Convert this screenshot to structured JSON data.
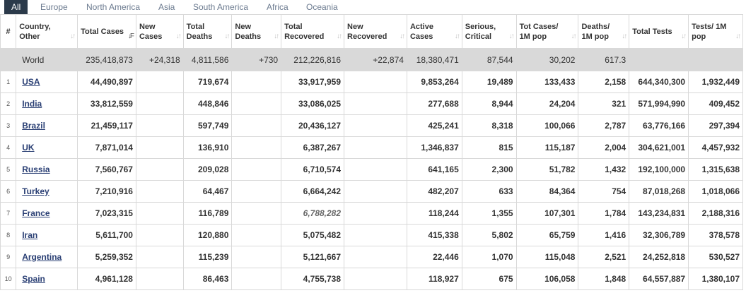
{
  "tabs": [
    "All",
    "Europe",
    "North America",
    "Asia",
    "South America",
    "Africa",
    "Oceania"
  ],
  "active_tab": "All",
  "columns": [
    {
      "key": "hash",
      "label": "#"
    },
    {
      "key": "country",
      "label": "Country, Other"
    },
    {
      "key": "total_cases",
      "label": "Total Cases"
    },
    {
      "key": "new_cases",
      "label": "New Cases"
    },
    {
      "key": "total_deaths",
      "label": "Total Deaths"
    },
    {
      "key": "new_deaths",
      "label": "New Deaths"
    },
    {
      "key": "total_recovered",
      "label": "Total Recovered"
    },
    {
      "key": "new_recovered",
      "label": "New Recovered"
    },
    {
      "key": "active_cases",
      "label": "Active Cases"
    },
    {
      "key": "serious",
      "label": "Serious, Critical"
    },
    {
      "key": "cases_1m",
      "label": "Tot Cases/ 1M pop"
    },
    {
      "key": "deaths_1m",
      "label": "Deaths/ 1M pop"
    },
    {
      "key": "total_tests",
      "label": "Total Tests"
    },
    {
      "key": "tests_1m",
      "label": "Tests/ 1M pop"
    }
  ],
  "world": {
    "country": "World",
    "total_cases": "235,418,873",
    "new_cases": "+24,318",
    "total_deaths": "4,811,586",
    "new_deaths": "+730",
    "total_recovered": "212,226,816",
    "new_recovered": "+22,874",
    "active_cases": "18,380,471",
    "serious": "87,544",
    "cases_1m": "30,202",
    "deaths_1m": "617.3",
    "total_tests": "",
    "tests_1m": ""
  },
  "rows": [
    {
      "idx": "1",
      "country": "USA",
      "total_cases": "44,490,897",
      "new_cases": "",
      "total_deaths": "719,674",
      "new_deaths": "",
      "total_recovered": "33,917,959",
      "new_recovered": "",
      "active_cases": "9,853,264",
      "serious": "19,489",
      "cases_1m": "133,433",
      "deaths_1m": "2,158",
      "total_tests": "644,340,300",
      "tests_1m": "1,932,449"
    },
    {
      "idx": "2",
      "country": "India",
      "total_cases": "33,812,559",
      "new_cases": "",
      "total_deaths": "448,846",
      "new_deaths": "",
      "total_recovered": "33,086,025",
      "new_recovered": "",
      "active_cases": "277,688",
      "serious": "8,944",
      "cases_1m": "24,204",
      "deaths_1m": "321",
      "total_tests": "571,994,990",
      "tests_1m": "409,452"
    },
    {
      "idx": "3",
      "country": "Brazil",
      "total_cases": "21,459,117",
      "new_cases": "",
      "total_deaths": "597,749",
      "new_deaths": "",
      "total_recovered": "20,436,127",
      "new_recovered": "",
      "active_cases": "425,241",
      "serious": "8,318",
      "cases_1m": "100,066",
      "deaths_1m": "2,787",
      "total_tests": "63,776,166",
      "tests_1m": "297,394"
    },
    {
      "idx": "4",
      "country": "UK",
      "total_cases": "7,871,014",
      "new_cases": "",
      "total_deaths": "136,910",
      "new_deaths": "",
      "total_recovered": "6,387,267",
      "new_recovered": "",
      "active_cases": "1,346,837",
      "serious": "815",
      "cases_1m": "115,187",
      "deaths_1m": "2,004",
      "total_tests": "304,621,001",
      "tests_1m": "4,457,932"
    },
    {
      "idx": "5",
      "country": "Russia",
      "total_cases": "7,560,767",
      "new_cases": "",
      "total_deaths": "209,028",
      "new_deaths": "",
      "total_recovered": "6,710,574",
      "new_recovered": "",
      "active_cases": "641,165",
      "serious": "2,300",
      "cases_1m": "51,782",
      "deaths_1m": "1,432",
      "total_tests": "192,100,000",
      "tests_1m": "1,315,638"
    },
    {
      "idx": "6",
      "country": "Turkey",
      "total_cases": "7,210,916",
      "new_cases": "",
      "total_deaths": "64,467",
      "new_deaths": "",
      "total_recovered": "6,664,242",
      "new_recovered": "",
      "active_cases": "482,207",
      "serious": "633",
      "cases_1m": "84,364",
      "deaths_1m": "754",
      "total_tests": "87,018,268",
      "tests_1m": "1,018,066"
    },
    {
      "idx": "7",
      "country": "France",
      "total_cases": "7,023,315",
      "new_cases": "",
      "total_deaths": "116,789",
      "new_deaths": "",
      "total_recovered": "6,788,282",
      "recovered_italic": true,
      "new_recovered": "",
      "active_cases": "118,244",
      "serious": "1,355",
      "cases_1m": "107,301",
      "deaths_1m": "1,784",
      "total_tests": "143,234,831",
      "tests_1m": "2,188,316"
    },
    {
      "idx": "8",
      "country": "Iran",
      "total_cases": "5,611,700",
      "new_cases": "",
      "total_deaths": "120,880",
      "new_deaths": "",
      "total_recovered": "5,075,482",
      "new_recovered": "",
      "active_cases": "415,338",
      "serious": "5,802",
      "cases_1m": "65,759",
      "deaths_1m": "1,416",
      "total_tests": "32,306,789",
      "tests_1m": "378,578"
    },
    {
      "idx": "9",
      "country": "Argentina",
      "total_cases": "5,259,352",
      "new_cases": "",
      "total_deaths": "115,239",
      "new_deaths": "",
      "total_recovered": "5,121,667",
      "new_recovered": "",
      "active_cases": "22,446",
      "serious": "1,070",
      "cases_1m": "115,048",
      "deaths_1m": "2,521",
      "total_tests": "24,252,818",
      "tests_1m": "530,527"
    },
    {
      "idx": "10",
      "country": "Spain",
      "total_cases": "4,961,128",
      "new_cases": "",
      "total_deaths": "86,463",
      "new_deaths": "",
      "total_recovered": "4,755,738",
      "new_recovered": "",
      "active_cases": "118,927",
      "serious": "675",
      "cases_1m": "106,058",
      "deaths_1m": "1,848",
      "total_tests": "64,557,887",
      "tests_1m": "1,380,107"
    }
  ]
}
